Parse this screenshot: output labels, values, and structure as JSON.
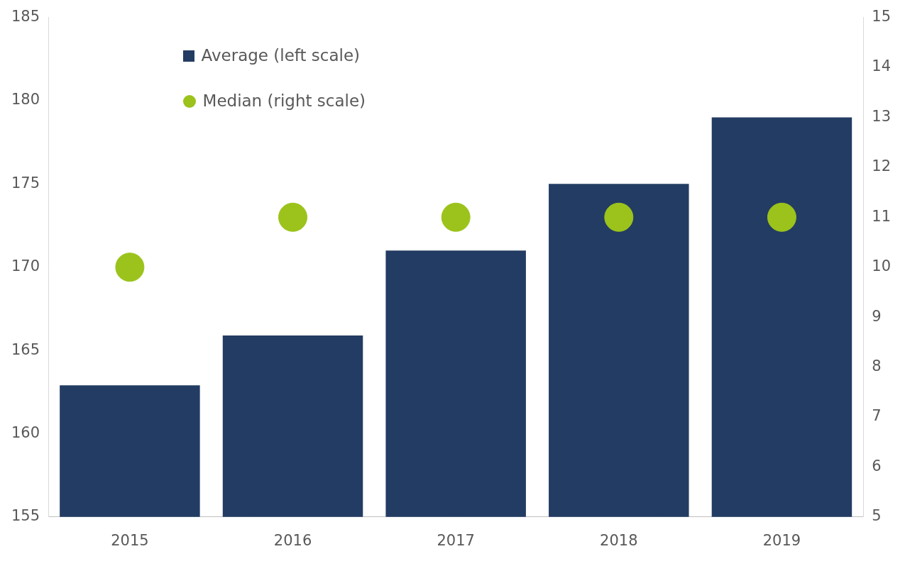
{
  "chart_data": {
    "type": "bar",
    "categories": [
      "2015",
      "2016",
      "2017",
      "2018",
      "2019"
    ],
    "series": [
      {
        "name": "Average (left scale)",
        "type": "bar",
        "color": "#233c63",
        "values": [
          162.9,
          165.9,
          171,
          175,
          179
        ]
      },
      {
        "name": "Median (right scale)",
        "type": "scatter",
        "marker": "circle",
        "color": "#9bc31b",
        "axis": "y2",
        "values": [
          10,
          11,
          11,
          11,
          11
        ]
      }
    ],
    "ylim": [
      155,
      185
    ],
    "yticks": [
      155,
      160,
      165,
      170,
      175,
      180,
      185
    ],
    "y2lim": [
      5,
      15
    ],
    "y2ticks": [
      5,
      6,
      7,
      8,
      9,
      10,
      11,
      12,
      13,
      14,
      15
    ],
    "grid": false,
    "legend": "upper left"
  }
}
